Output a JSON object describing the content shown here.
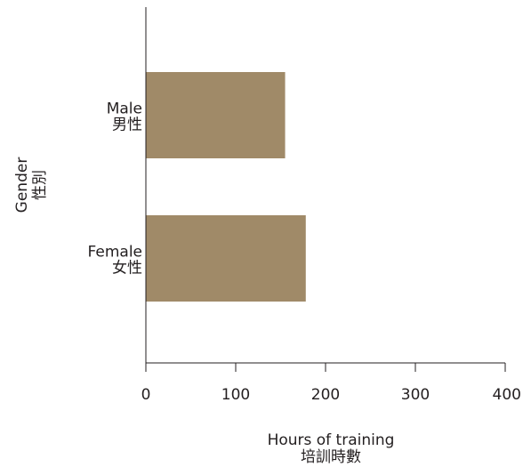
{
  "chart_data": {
    "type": "bar",
    "orientation": "horizontal",
    "categories": [
      {
        "label_en": "Male",
        "label_zh": "男性"
      },
      {
        "label_en": "Female",
        "label_zh": "女性"
      }
    ],
    "values": [
      155,
      178
    ],
    "xlim": [
      0,
      400
    ],
    "xticks": [
      "0",
      "100",
      "200",
      "300",
      "400"
    ],
    "xlabel": {
      "en": "Hours of training",
      "zh": "培訓時數"
    },
    "ylabel": {
      "en": "Gender",
      "zh": "性別"
    },
    "bar_color": "#a08a68",
    "axis_color": "#231f20",
    "grid": false,
    "legend": "none"
  }
}
